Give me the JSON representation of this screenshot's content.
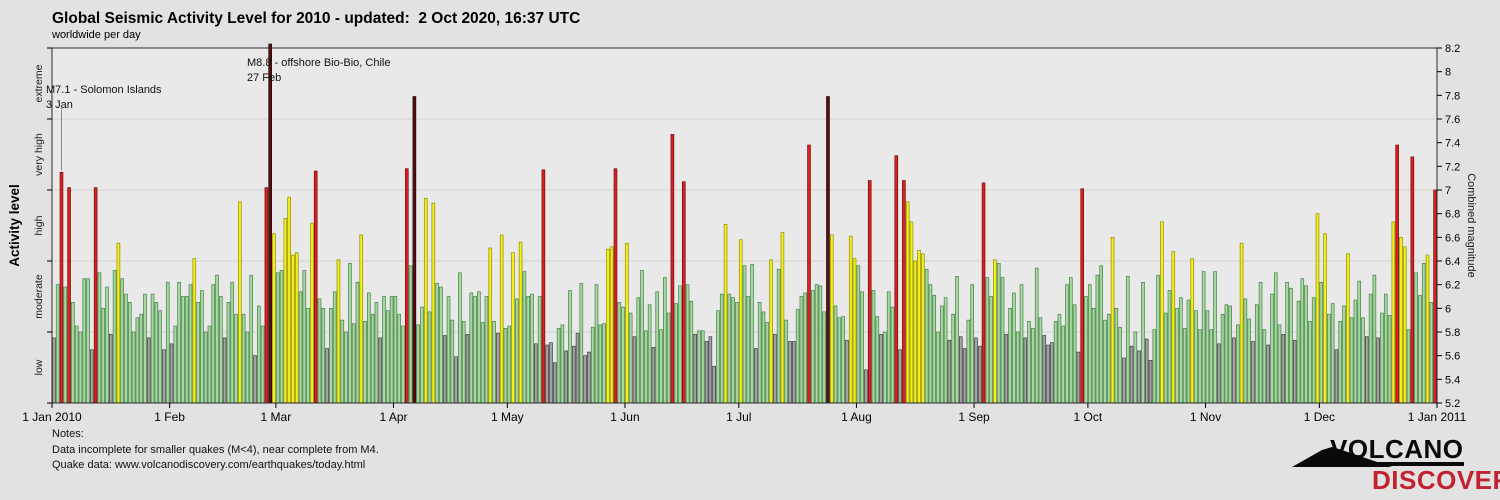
{
  "header": {
    "title": "Global Seismic Activity Level for 2010 - updated:  2 Oct 2020, 16:37 UTC",
    "subtitle": "worldwide per day"
  },
  "annotations": [
    {
      "line1": "M7.1 - Solomon Islands",
      "line2": "3 Jan",
      "day": 2,
      "leader": true
    },
    {
      "line1": "M8.8 - offshore Bio-Bio, Chile",
      "line2": "27 Feb",
      "day": 57,
      "leader": false
    }
  ],
  "notes": {
    "heading": "Notes:",
    "line1": "Data incomplete for smaller quakes (M<4), near complete from M4.",
    "line2": "Quake data: www.volcanodiscovery.com/earthquakes/today.html"
  },
  "logo": {
    "word1": "VOLCANO",
    "word2": "DISCOVERY",
    "accent": "#c32132"
  },
  "chart_data": {
    "type": "bar",
    "title": "Global Seismic Activity Level for 2010",
    "xlabel": "",
    "ylabel_left": "Activity level",
    "ylabel_right": "Combined magnitude",
    "ylim": [
      5.2,
      8.2
    ],
    "grid": true,
    "gridlines": [
      5.8,
      6.4,
      7.0,
      7.6
    ],
    "left_axis_ticks": [
      5.2,
      5.8,
      6.4,
      7.0,
      7.6,
      8.2
    ],
    "right_axis_ticks": [
      5.2,
      5.4,
      5.6,
      5.8,
      6.0,
      6.2,
      6.4,
      6.6,
      6.8,
      7.0,
      7.2,
      7.4,
      7.6,
      7.8,
      8.0,
      8.2
    ],
    "activity_levels": [
      {
        "label": "low",
        "range": [
          5.2,
          5.8
        ]
      },
      {
        "label": "moderate",
        "range": [
          5.8,
          6.4
        ]
      },
      {
        "label": "high",
        "range": [
          6.4,
          7.0
        ]
      },
      {
        "label": "very high",
        "range": [
          7.0,
          7.6
        ]
      },
      {
        "label": "extreme",
        "range": [
          7.6,
          8.2
        ]
      }
    ],
    "level_colors": {
      "low": {
        "fill": "#a3a3a3",
        "stroke": "#3f3f3f"
      },
      "moderate": {
        "fill": "#a8d7a0",
        "stroke": "#44804a"
      },
      "high": {
        "fill": "#f4ee1e",
        "stroke": "#8f8f00"
      },
      "very_high": {
        "fill": "#dd1f1f",
        "stroke": "#6b1212"
      },
      "extreme": {
        "fill": "#5a0f0f",
        "stroke": "#1d0404"
      }
    },
    "x_ticks": {
      "day_offsets": [
        0,
        31,
        59,
        90,
        120,
        151,
        181,
        212,
        243,
        273,
        304,
        334,
        365
      ],
      "labels": [
        "1 Jan 2010",
        "1 Feb",
        "1 Mar",
        "1 Apr",
        "1 May",
        "1 Jun",
        "1 Jul",
        "1 Aug",
        "1 Sep",
        "1 Oct",
        "1 Nov",
        "1 Dec",
        "1 Jan 2011"
      ]
    },
    "days_total": 365,
    "values": [
      5.75,
      6.2,
      7.15,
      6.18,
      7.02,
      6.05,
      5.85,
      5.8,
      6.25,
      6.25,
      5.65,
      7.02,
      6.3,
      6.0,
      6.18,
      5.78,
      6.32,
      6.55,
      6.25,
      6.12,
      6.05,
      5.8,
      5.92,
      5.95,
      6.12,
      5.75,
      6.12,
      6.05,
      5.98,
      5.65,
      6.22,
      5.7,
      5.85,
      6.22,
      6.1,
      6.1,
      6.2,
      6.42,
      6.05,
      6.15,
      5.8,
      5.85,
      6.2,
      6.28,
      6.1,
      5.75,
      6.05,
      6.22,
      5.95,
      6.9,
      5.95,
      5.8,
      6.28,
      5.6,
      6.02,
      5.85,
      7.02,
      8.8,
      6.63,
      6.3,
      6.32,
      6.76,
      6.94,
      6.45,
      6.47,
      6.14,
      6.32,
      6.0,
      6.72,
      7.16,
      6.08,
      6.0,
      5.66,
      6.0,
      6.14,
      6.41,
      5.9,
      5.8,
      6.38,
      5.87,
      6.22,
      6.62,
      5.89,
      6.13,
      5.95,
      6.05,
      5.75,
      6.1,
      5.98,
      6.1,
      6.1,
      5.95,
      5.85,
      7.18,
      6.36,
      7.79,
      5.86,
      6.01,
      6.93,
      5.97,
      6.89,
      6.21,
      6.18,
      5.77,
      6.1,
      5.9,
      5.59,
      6.3,
      5.89,
      5.78,
      6.13,
      6.1,
      6.14,
      5.88,
      6.1,
      6.51,
      5.89,
      5.79,
      6.62,
      5.83,
      5.85,
      6.47,
      6.08,
      6.56,
      6.31,
      6.1,
      6.12,
      5.7,
      6.1,
      7.17,
      5.69,
      5.71,
      5.54,
      5.83,
      5.86,
      5.64,
      6.15,
      5.68,
      5.79,
      6.21,
      5.6,
      5.63,
      5.84,
      6.2,
      5.86,
      5.87,
      6.5,
      6.52,
      7.18,
      6.05,
      6.01,
      6.55,
      5.96,
      5.76,
      6.09,
      6.32,
      5.81,
      6.03,
      5.67,
      6.14,
      5.82,
      6.26,
      5.96,
      7.47,
      6.04,
      6.19,
      7.07,
      6.2,
      6.06,
      5.78,
      5.81,
      5.81,
      5.72,
      5.76,
      5.51,
      5.98,
      6.12,
      6.71,
      6.12,
      6.09,
      6.05,
      6.58,
      6.36,
      6.1,
      6.37,
      5.66,
      6.05,
      5.97,
      5.88,
      6.41,
      5.78,
      6.33,
      6.64,
      5.9,
      5.72,
      5.72,
      5.99,
      6.1,
      6.13,
      7.38,
      6.15,
      6.2,
      6.19,
      5.97,
      7.79,
      6.62,
      6.02,
      5.92,
      5.93,
      5.73,
      6.61,
      6.42,
      6.36,
      6.14,
      5.48,
      7.08,
      6.15,
      5.93,
      5.78,
      5.8,
      6.14,
      6.01,
      7.29,
      5.65,
      7.08,
      6.9,
      6.73,
      6.4,
      6.49,
      6.46,
      6.33,
      6.2,
      6.11,
      5.8,
      6.02,
      6.09,
      5.73,
      5.95,
      6.27,
      5.76,
      5.66,
      5.9,
      6.2,
      5.75,
      5.68,
      7.06,
      6.26,
      6.1,
      6.41,
      6.38,
      6.26,
      5.78,
      6.0,
      6.13,
      5.8,
      6.2,
      5.75,
      5.89,
      5.83,
      6.34,
      5.92,
      5.77,
      5.69,
      5.71,
      5.89,
      5.95,
      5.85,
      6.2,
      6.26,
      6.03,
      5.63,
      7.01,
      6.1,
      6.2,
      6.0,
      6.28,
      6.36,
      5.9,
      5.95,
      6.6,
      6.0,
      5.84,
      5.58,
      6.27,
      5.68,
      5.8,
      5.64,
      6.22,
      5.74,
      5.56,
      5.82,
      6.28,
      6.73,
      5.96,
      6.15,
      6.48,
      6.0,
      6.09,
      5.83,
      6.07,
      6.42,
      5.98,
      5.82,
      6.31,
      5.98,
      5.82,
      6.31,
      5.7,
      5.95,
      6.03,
      6.02,
      5.75,
      5.86,
      6.55,
      6.08,
      5.91,
      5.72,
      6.03,
      6.22,
      5.82,
      5.69,
      6.12,
      6.3,
      5.86,
      5.78,
      6.22,
      6.17,
      5.73,
      6.06,
      6.25,
      6.19,
      5.89,
      6.09,
      6.8,
      6.22,
      6.63,
      5.95,
      6.04,
      5.65,
      5.89,
      6.02,
      6.46,
      5.92,
      6.07,
      6.23,
      5.92,
      5.76,
      6.12,
      6.28,
      5.75,
      5.96,
      6.12,
      5.94,
      6.73,
      7.38,
      6.6,
      6.52,
      5.82,
      7.28,
      6.3,
      6.11,
      6.38,
      6.45,
      6.05,
      7.0
    ],
    "layout": {
      "plot_left": 52,
      "plot_top": 48,
      "plot_right": 1437,
      "plot_bottom": 403,
      "plot_bg": "#e9e9e9",
      "page_bg": "#e2e2e2",
      "grid_color": "#d4d4d4",
      "frame_color": "#2a2a2a"
    }
  }
}
